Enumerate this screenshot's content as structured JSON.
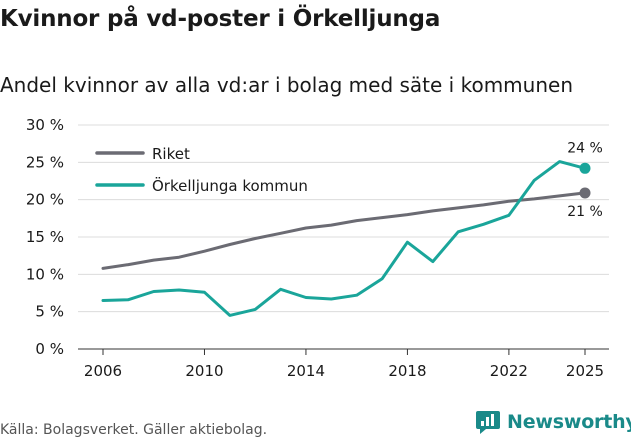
{
  "header": {
    "title": "Kvinnor på vd-poster i Örkelljunga",
    "subtitle": "Andel kvinnor av alla vd:ar i bolag med säte i kommunen"
  },
  "footer": {
    "source": "Källa: Bolagsverket. Gäller aktiebolag.",
    "brand": "Newsworthy"
  },
  "colors": {
    "riket": "#6b6b73",
    "kommun": "#1aa59a",
    "grid": "#dcdcdc",
    "brand": "#1a8a89"
  },
  "chart_data": {
    "type": "line",
    "title": "Kvinnor på vd-poster i Örkelljunga",
    "subtitle": "Andel kvinnor av alla vd:ar i bolag med säte i kommunen",
    "xlabel": "",
    "ylabel": "",
    "x": [
      2006,
      2007,
      2008,
      2009,
      2010,
      2011,
      2012,
      2013,
      2014,
      2015,
      2016,
      2017,
      2018,
      2019,
      2020,
      2021,
      2022,
      2023,
      2024,
      2025
    ],
    "xlim": [
      2006,
      2025
    ],
    "ylim": [
      0,
      30
    ],
    "x_ticks": [
      2006,
      2010,
      2014,
      2018,
      2022,
      2025
    ],
    "x_tick_labels": [
      "2006",
      "2010",
      "2014",
      "2018",
      "2022",
      "2025"
    ],
    "y_ticks": [
      0,
      5,
      10,
      15,
      20,
      25,
      30
    ],
    "y_tick_labels": [
      "0 %",
      "5 %",
      "10 %",
      "15 %",
      "20 %",
      "25 %",
      "30 %"
    ],
    "grid": true,
    "legend": "top-left",
    "series": [
      {
        "name": "Riket",
        "color": "#6b6b73",
        "values": [
          10.8,
          11.3,
          11.9,
          12.3,
          13.1,
          14.0,
          14.8,
          15.5,
          16.2,
          16.6,
          17.2,
          17.6,
          18.0,
          18.5,
          18.9,
          19.3,
          19.8,
          20.1,
          20.5,
          20.9
        ],
        "end_label": "21 %"
      },
      {
        "name": "Örkelljunga kommun",
        "color": "#1aa59a",
        "values": [
          6.5,
          6.6,
          7.7,
          7.9,
          7.6,
          4.5,
          5.3,
          8.0,
          6.9,
          6.7,
          7.2,
          9.4,
          14.3,
          11.7,
          15.7,
          16.7,
          17.9,
          22.6,
          25.1,
          24.2
        ],
        "end_label": "24 %"
      }
    ]
  }
}
